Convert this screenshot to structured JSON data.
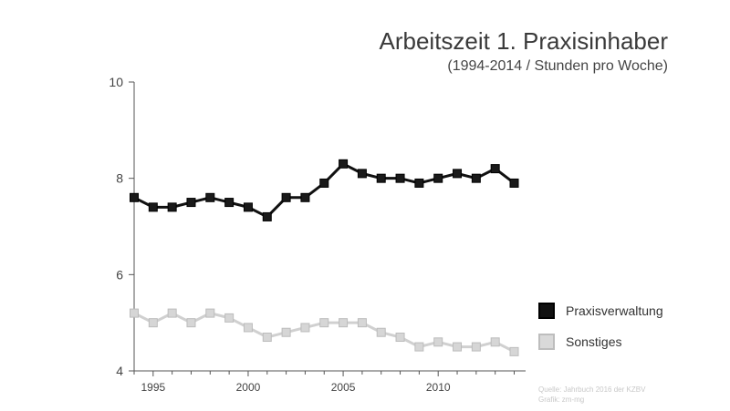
{
  "chart_data": {
    "type": "line",
    "title": "Arbeitszeit 1. Praxisinhaber",
    "subtitle": "(1994-2014 / Stunden pro Woche)",
    "x": [
      1994,
      1995,
      1996,
      1997,
      1998,
      1999,
      2000,
      2001,
      2002,
      2003,
      2004,
      2005,
      2006,
      2007,
      2008,
      2009,
      2010,
      2011,
      2012,
      2013,
      2014
    ],
    "xticks": [
      1995,
      2000,
      2005,
      2010
    ],
    "xtick_labels": [
      "1995",
      "2000",
      "2005",
      "2010"
    ],
    "xlim": [
      1994,
      2014.6
    ],
    "ylim": [
      4,
      10
    ],
    "yticks": [
      4,
      6,
      8,
      10
    ],
    "ytick_labels": [
      "4",
      "6",
      "8",
      "10"
    ],
    "grid": false,
    "legend_position": "right",
    "series": [
      {
        "name": "Praxisverwaltung",
        "color": "#111111",
        "values": [
          7.6,
          7.4,
          7.4,
          7.5,
          7.6,
          7.5,
          7.4,
          7.2,
          7.6,
          7.6,
          7.9,
          8.3,
          8.1,
          8.0,
          8.0,
          7.9,
          8.0,
          8.1,
          8.0,
          8.2,
          7.9
        ]
      },
      {
        "name": "Sonstiges",
        "color": "#d0d0d0",
        "values": [
          5.2,
          5.0,
          5.2,
          5.0,
          5.2,
          5.1,
          4.9,
          4.7,
          4.8,
          4.9,
          5.0,
          5.0,
          5.0,
          4.8,
          4.7,
          4.5,
          4.6,
          4.5,
          4.5,
          4.6,
          4.4
        ]
      }
    ]
  },
  "source": {
    "line1": "Quelle: Jahrbuch 2016 der KZBV",
    "line2": "Grafik: zm-mg"
  }
}
